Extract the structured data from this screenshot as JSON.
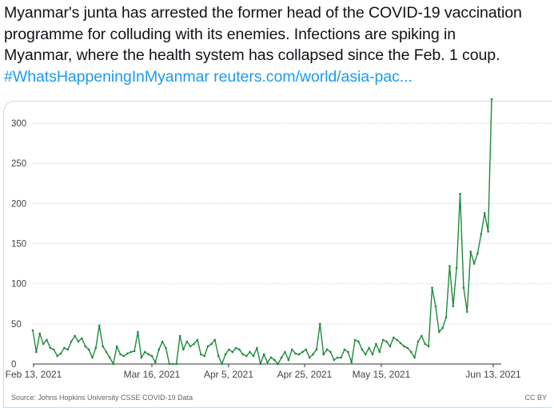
{
  "tweet": {
    "lines": [
      "Myanmar's junta has arrested the former head of the COVID-19 vaccination",
      "programme for colluding with its enemies. Infections are spiking in",
      "Myanmar, where the health system has collapsed since the Feb. 1 coup."
    ],
    "hashtag": "#WhatsHappeningInMyanmar",
    "url": "reuters.com/world/asia-pac..."
  },
  "card": {
    "source": "Source: Johns Hopkins University CSSE COVID-19 Data",
    "license": "CC BY"
  },
  "colors": {
    "line": "#1e8a3c",
    "grid": "#d9d9d9",
    "axis": "#333333",
    "link": "#1d9bf0"
  },
  "chart_data": {
    "type": "line",
    "x_start": "2021-02-13",
    "xticks": [
      "Feb 13, 2021",
      "Mar 16, 2021",
      "Apr 5, 2021",
      "Apr 25, 2021",
      "May 15, 2021",
      "Jun 13, 2021"
    ],
    "ylim": [
      0,
      330
    ],
    "yticks": [
      0,
      50,
      100,
      150,
      200,
      250,
      300
    ],
    "grid": true,
    "values": [
      42,
      15,
      38,
      25,
      30,
      20,
      18,
      10,
      13,
      20,
      18,
      28,
      35,
      28,
      32,
      22,
      18,
      8,
      20,
      48,
      22,
      15,
      8,
      0,
      22,
      12,
      10,
      13,
      15,
      16,
      40,
      8,
      15,
      12,
      10,
      2,
      18,
      28,
      20,
      0,
      0,
      0,
      35,
      18,
      28,
      22,
      25,
      30,
      12,
      10,
      22,
      25,
      30,
      10,
      0,
      12,
      18,
      15,
      20,
      18,
      12,
      10,
      15,
      10,
      20,
      0,
      12,
      2,
      8,
      5,
      0,
      8,
      15,
      5,
      18,
      13,
      12,
      15,
      18,
      8,
      12,
      18,
      50,
      12,
      18,
      15,
      5,
      8,
      8,
      18,
      15,
      2,
      30,
      28,
      18,
      12,
      20,
      12,
      25,
      15,
      30,
      28,
      22,
      33,
      30,
      26,
      22,
      20,
      15,
      8,
      28,
      35,
      25,
      22,
      95,
      72,
      40,
      45,
      58,
      122,
      72,
      120,
      212,
      95,
      65,
      140,
      125,
      138,
      162,
      188,
      165,
      330
    ]
  }
}
